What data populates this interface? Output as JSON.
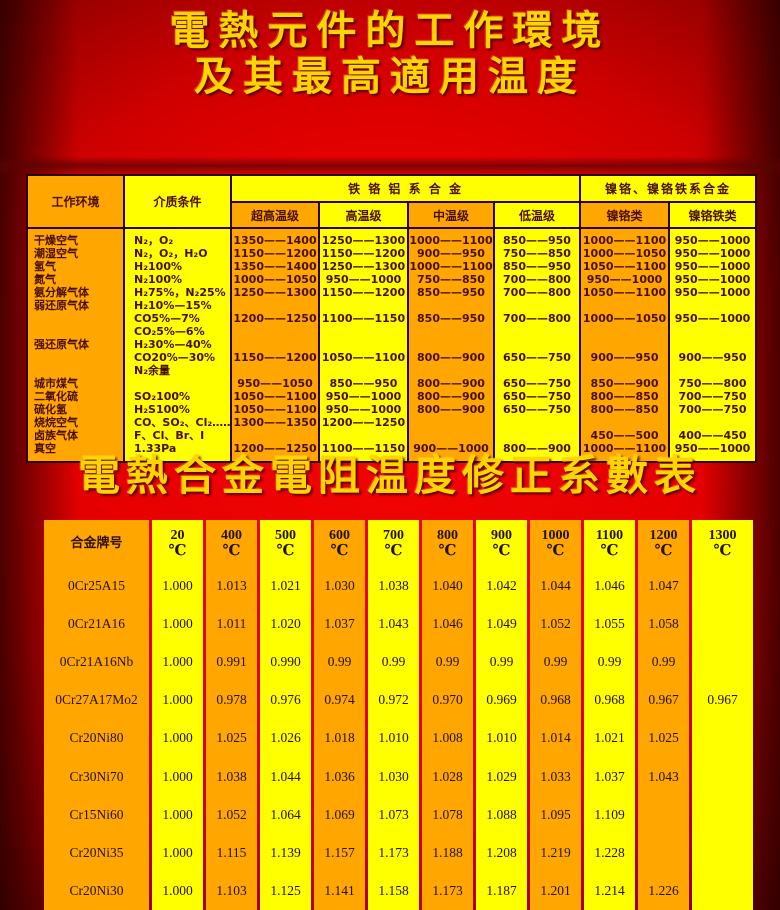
{
  "titles": {
    "main_line1": "電熱元件的工作環境",
    "main_line2": "及其最高適用温度",
    "second": "電熱合金電阻温度修正系數表"
  },
  "colors": {
    "background_red": "#e60000",
    "stripe_orange": "#ffa600",
    "stripe_yellow": "#ffff00",
    "table_border": "#2b0300",
    "title_yellow": "#ffd400"
  },
  "table1": {
    "header": {
      "env": "工作环境",
      "medium": "介质条件",
      "group1": "铁 铬 铝 系 合 金",
      "group2": "镍铬、镍铬铁系合金",
      "sub": [
        "超高温级",
        "高温级",
        "中温级",
        "低温级",
        "镍铬类",
        "镍铬铁类"
      ]
    },
    "rows": [
      {
        "env": "干燥空气",
        "medium": "N₂，O₂",
        "values": [
          "1350——1400",
          "1250——1300",
          "1000——1100",
          "850——950",
          "1000——1100",
          "950——1000"
        ]
      },
      {
        "env": "潮湿空气",
        "medium": "N₂，O₂，H₂O",
        "values": [
          "1150——1200",
          "1150——1200",
          "900——950",
          "750——850",
          "1000——1050",
          "950——1000"
        ]
      },
      {
        "env": "氢气",
        "medium": "H₂100%",
        "values": [
          "1350——1400",
          "1250——1300",
          "1000——1100",
          "850——950",
          "1050——1100",
          "950——1000"
        ]
      },
      {
        "env": "氮气",
        "medium": "N₂100%",
        "values": [
          "1000——1050",
          "950——1000",
          "750——850",
          "700——800",
          "950——1000",
          "950——1000"
        ]
      },
      {
        "env": "氨分解气体",
        "medium": "H₂75%，N₂25%",
        "values": [
          "1250——1300",
          "1150——1200",
          "850——950",
          "700——800",
          "1050——1100",
          "950——1000"
        ]
      },
      {
        "env": "弱还原气体",
        "medium": "H₂10%—15%",
        "values": [
          "",
          "",
          "",
          "",
          "",
          ""
        ]
      },
      {
        "env": "",
        "medium": "CO5%—7%",
        "values": [
          "1200——1250",
          "1100——1150",
          "850——950",
          "700——800",
          "1000——1050",
          "950——1000"
        ]
      },
      {
        "env": "",
        "medium": "CO₂5%—6%",
        "values": [
          "",
          "",
          "",
          "",
          "",
          ""
        ]
      },
      {
        "env": "强还原气体",
        "medium": "H₂30%—40%",
        "values": [
          "",
          "",
          "",
          "",
          "",
          ""
        ]
      },
      {
        "env": "",
        "medium": "CO20%—30%",
        "values": [
          "1150——1200",
          "1050——1100",
          "800——900",
          "650——750",
          "900——950",
          "900——950"
        ]
      },
      {
        "env": "",
        "medium": "N₂余量",
        "values": [
          "",
          "",
          "",
          "",
          "",
          ""
        ]
      },
      {
        "env": "城市煤气",
        "medium": "",
        "values": [
          "950——1050",
          "850——950",
          "800——900",
          "650——750",
          "850——900",
          "750——800"
        ]
      },
      {
        "env": "二氧化硫",
        "medium": "SO₂100%",
        "values": [
          "1050——1100",
          "950——1000",
          "800——900",
          "650——750",
          "800——850",
          "700——750"
        ]
      },
      {
        "env": "硫化氢",
        "medium": "H₂S100%",
        "values": [
          "1050——1100",
          "950——1000",
          "800——900",
          "650——750",
          "800——850",
          "700——750"
        ]
      },
      {
        "env": "烧烷空气",
        "medium": "CO、SO₂、Cl₂……",
        "values": [
          "1300——1350",
          "1200——1250",
          "",
          "",
          "",
          ""
        ]
      },
      {
        "env": "卤族气体",
        "medium": "F、Cl、Br、I",
        "values": [
          "",
          "",
          "",
          "",
          "450——500",
          "400——450"
        ]
      },
      {
        "env": "真空",
        "medium": "1.33Pa",
        "values": [
          "1200——1250",
          "1100——1150",
          "900——1000",
          "800——900",
          "1000——1100",
          "950——1000"
        ]
      }
    ]
  },
  "table2": {
    "name_header": "合金牌号",
    "temps": [
      "20",
      "400",
      "500",
      "600",
      "700",
      "800",
      "900",
      "1000",
      "1100",
      "1200",
      "1300"
    ],
    "unit": "℃",
    "rows": [
      {
        "name": "0Cr25A15",
        "values": [
          "1.000",
          "1.013",
          "1.021",
          "1.030",
          "1.038",
          "1.040",
          "1.042",
          "1.044",
          "1.046",
          "1.047",
          ""
        ]
      },
      {
        "name": "0Cr21A16",
        "values": [
          "1.000",
          "1.011",
          "1.020",
          "1.037",
          "1.043",
          "1.046",
          "1.049",
          "1.052",
          "1.055",
          "1.058",
          ""
        ]
      },
      {
        "name": "0Cr21A16Nb",
        "values": [
          "1.000",
          "0.991",
          "0.990",
          "0.99",
          "0.99",
          "0.99",
          "0.99",
          "0.99",
          "0.99",
          "0.99",
          ""
        ]
      },
      {
        "name": "0Cr27A17Mo2",
        "values": [
          "1.000",
          "0.978",
          "0.976",
          "0.974",
          "0.972",
          "0.970",
          "0.969",
          "0.968",
          "0.968",
          "0.967",
          "0.967"
        ]
      },
      {
        "name": "Cr20Ni80",
        "values": [
          "1.000",
          "1.025",
          "1.026",
          "1.018",
          "1.010",
          "1.008",
          "1.010",
          "1.014",
          "1.021",
          "1.025",
          ""
        ]
      },
      {
        "name": "Cr30Ni70",
        "values": [
          "1.000",
          "1.038",
          "1.044",
          "1.036",
          "1.030",
          "1.028",
          "1.029",
          "1.033",
          "1.037",
          "1.043",
          ""
        ]
      },
      {
        "name": "Cr15Ni60",
        "values": [
          "1.000",
          "1.052",
          "1.064",
          "1.069",
          "1.073",
          "1.078",
          "1.088",
          "1.095",
          "1.109",
          "",
          ""
        ]
      },
      {
        "name": "Cr20Ni35",
        "values": [
          "1.000",
          "1.115",
          "1.139",
          "1.157",
          "1.173",
          "1.188",
          "1.208",
          "1.219",
          "1.228",
          "",
          ""
        ]
      },
      {
        "name": "Cr20Ni30",
        "values": [
          "1.000",
          "1.103",
          "1.125",
          "1.141",
          "1.158",
          "1.173",
          "1.187",
          "1.201",
          "1.214",
          "1.226",
          ""
        ]
      }
    ]
  }
}
